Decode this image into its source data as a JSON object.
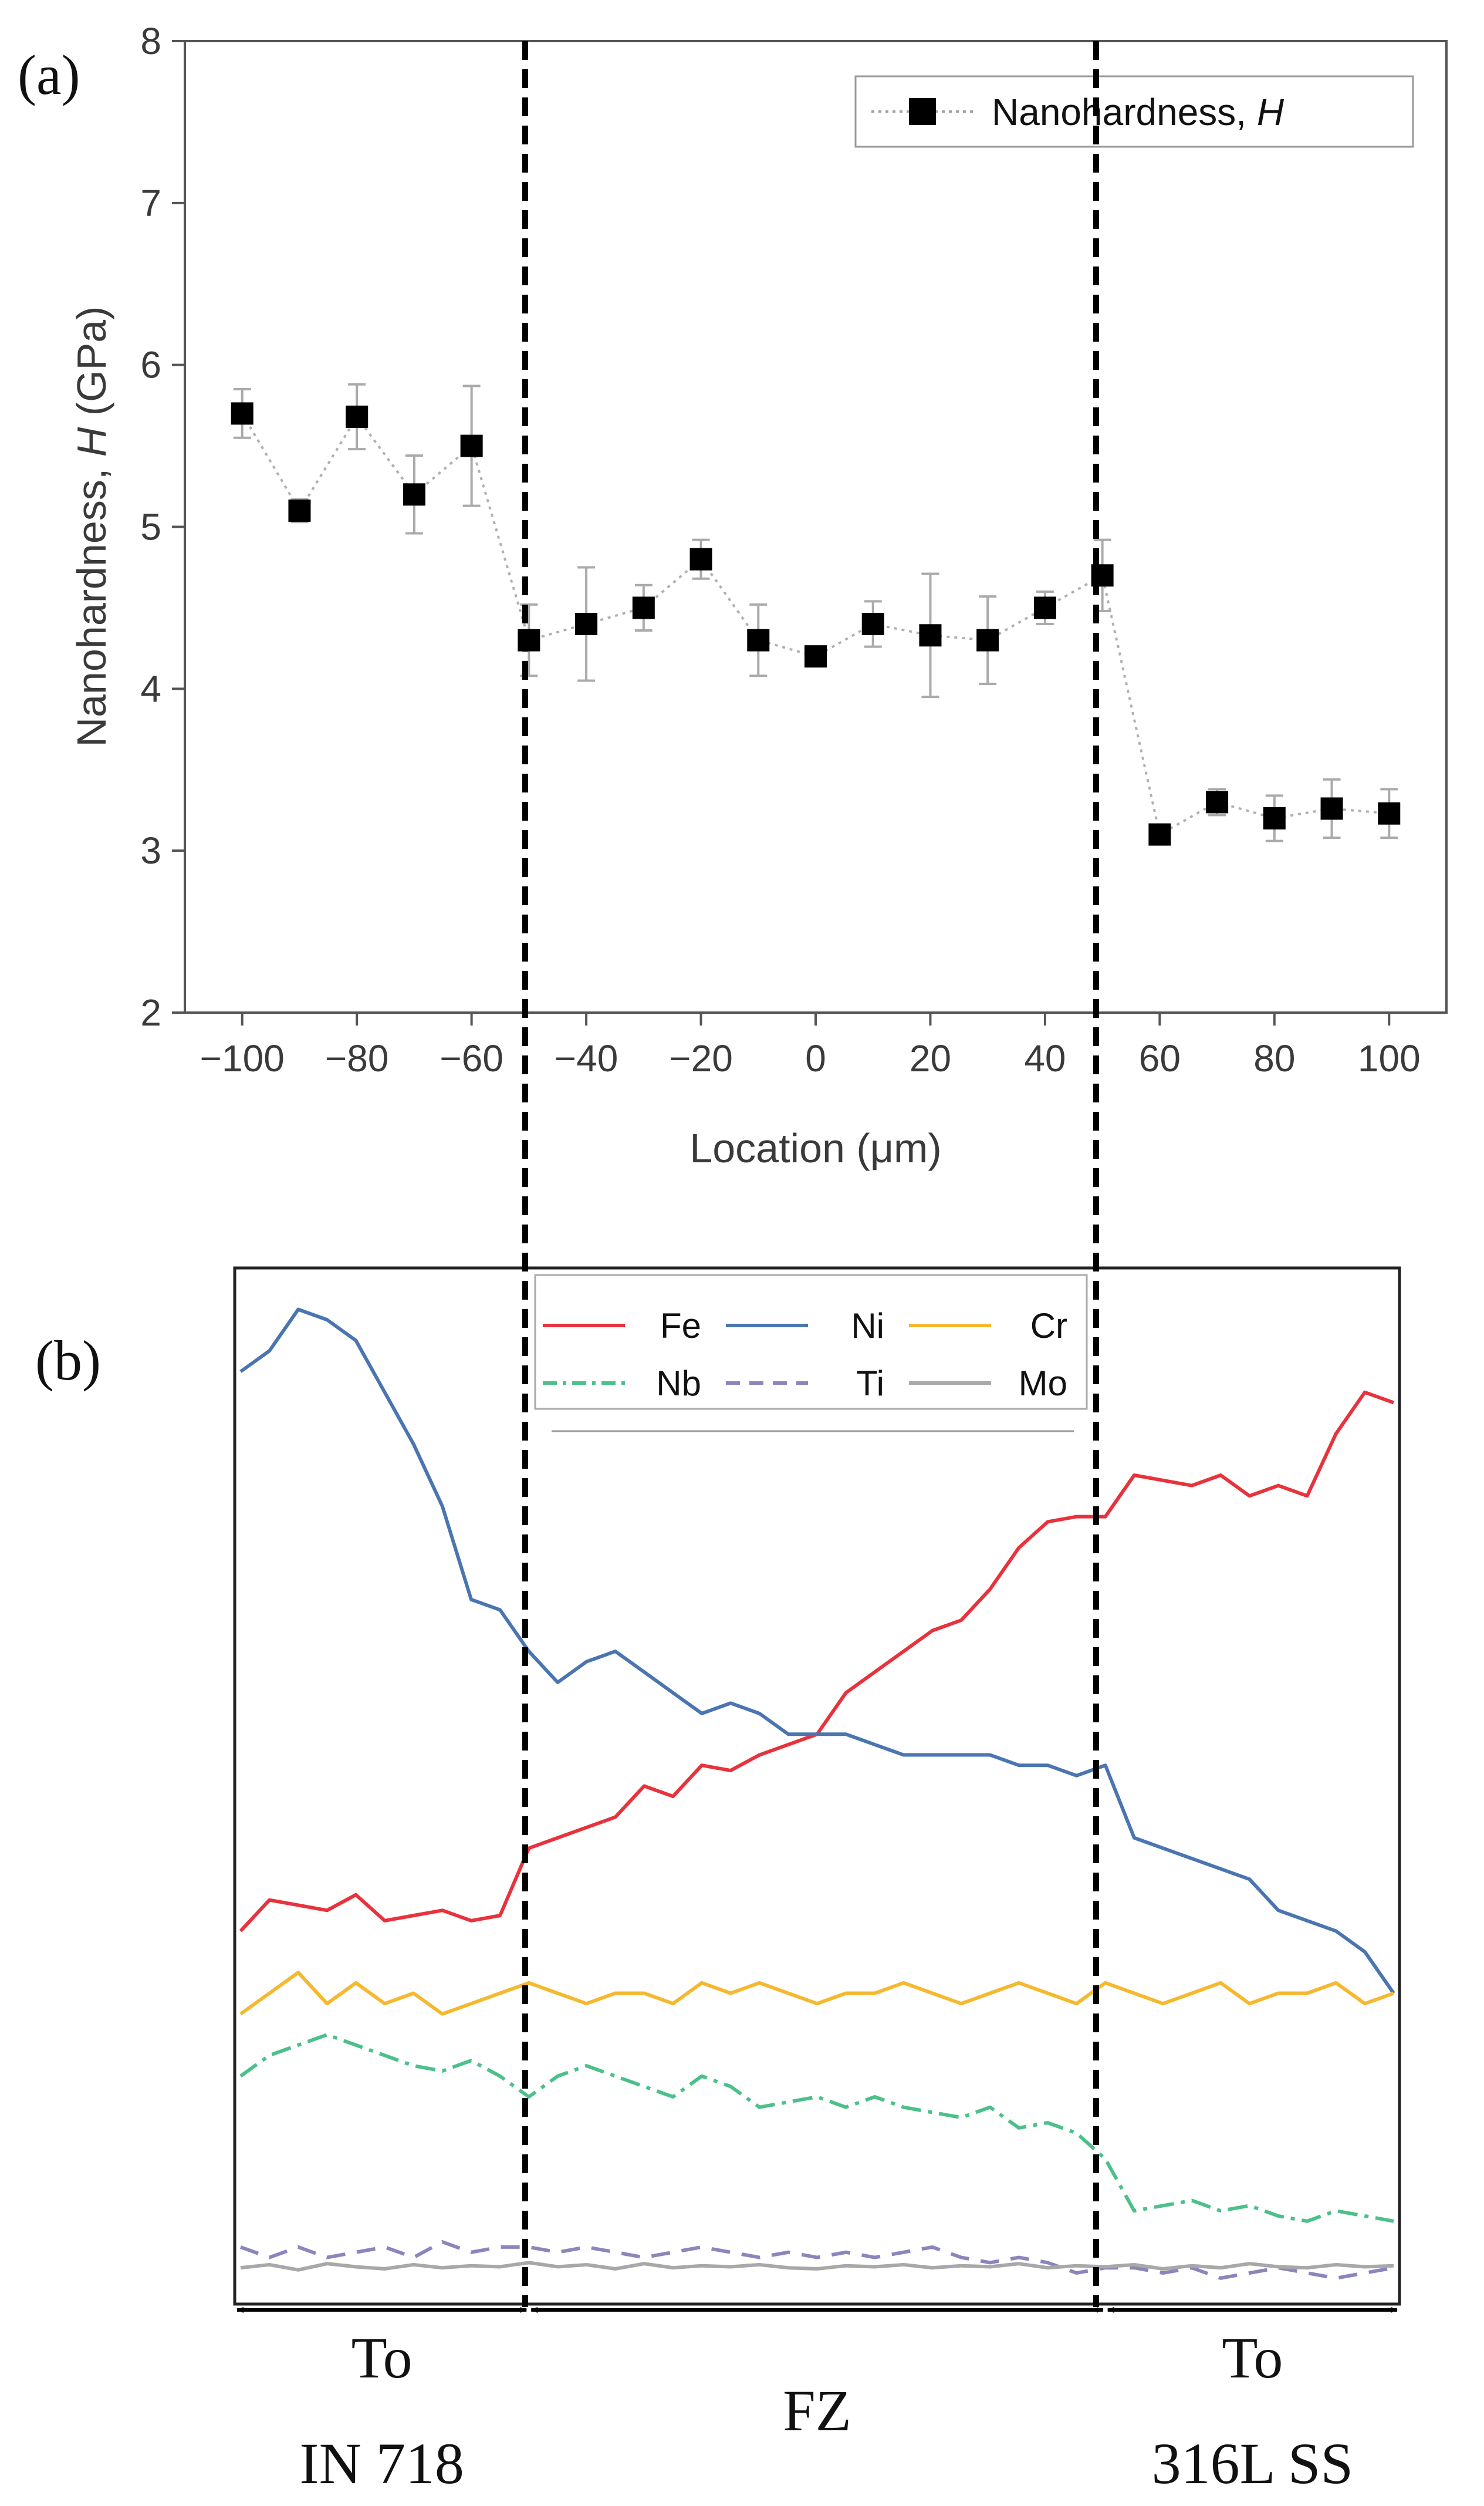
{
  "chart_data": [
    {
      "type": "scatter",
      "panel_label": "(a)",
      "title": "",
      "xlabel": "Location (μm)",
      "ylabel_prefix": "Nanohardness, ",
      "ylabel_symbol": "H",
      "ylabel_suffix": " (GPa)",
      "xlim": [
        -110,
        110
      ],
      "ylim": [
        2,
        8
      ],
      "xticks": [
        -100,
        -80,
        -60,
        -40,
        -20,
        0,
        20,
        40,
        60,
        80,
        100
      ],
      "xtick_labels": [
        "−100",
        "−80",
        "−60",
        "−40",
        "−20",
        "0",
        "20",
        "40",
        "60",
        "80",
        "100"
      ],
      "yticks": [
        2,
        3,
        4,
        5,
        6,
        7,
        8
      ],
      "ytick_labels": [
        "2",
        "3",
        "4",
        "5",
        "6",
        "7",
        "8"
      ],
      "legend_position": "top-right",
      "series": [
        {
          "name": "Nanohardness, ",
          "name_symbol": "H",
          "marker": "square",
          "color": "#000000",
          "line_color": "#b0b0b0",
          "x": [
            -100,
            -90,
            -80,
            -70,
            -60,
            -50,
            -40,
            -30,
            -20,
            -10,
            0,
            10,
            20,
            30,
            40,
            50,
            60,
            70,
            80,
            90,
            100
          ],
          "y": [
            5.7,
            5.1,
            5.68,
            5.2,
            5.5,
            4.3,
            4.4,
            4.5,
            4.8,
            4.3,
            4.2,
            4.4,
            4.33,
            4.3,
            4.5,
            4.7,
            3.1,
            3.3,
            3.2,
            3.26,
            3.23
          ],
          "error": [
            0.15,
            0.07,
            0.2,
            0.24,
            0.37,
            0.22,
            0.35,
            0.14,
            0.12,
            0.22,
            0.06,
            0.14,
            0.38,
            0.27,
            0.1,
            0.22,
            0.05,
            0.08,
            0.14,
            0.18,
            0.15
          ]
        }
      ],
      "boundaries_x": [
        -50,
        50
      ]
    },
    {
      "type": "line",
      "panel_label": "(b)",
      "title": "",
      "xlabel": "",
      "ylabel": "",
      "x_units": "μm",
      "xlim": [
        -100,
        100
      ],
      "ylim": [
        0,
        100
      ],
      "legend_position": "top-center",
      "series": [
        {
          "name": "Fe",
          "color": "#e8323c",
          "style": "solid",
          "x": [
            -100,
            -95,
            -90,
            -85,
            -80,
            -75,
            -70,
            -65,
            -60,
            -55,
            -50,
            -45,
            -40,
            -35,
            -30,
            -25,
            -20,
            -15,
            -10,
            -5,
            0,
            5,
            10,
            15,
            20,
            25,
            30,
            35,
            40,
            45,
            50,
            55,
            60,
            65,
            70,
            75,
            80,
            85,
            90,
            95,
            100
          ],
          "values": [
            36,
            39,
            38.5,
            38,
            39.5,
            37,
            37.5,
            38,
            37,
            37.5,
            44,
            45,
            46,
            47,
            50,
            49,
            52,
            51.5,
            53,
            54,
            55,
            59,
            61,
            63,
            65,
            66,
            69,
            73,
            75.5,
            76,
            76,
            80,
            79.5,
            79,
            80,
            78,
            79,
            78,
            84,
            88,
            87
          ]
        },
        {
          "name": "Ni",
          "color": "#4a75b0",
          "style": "solid",
          "x": [
            -100,
            -95,
            -90,
            -85,
            -80,
            -75,
            -70,
            -65,
            -60,
            -55,
            -50,
            -45,
            -40,
            -35,
            -30,
            -25,
            -20,
            -15,
            -10,
            -5,
            0,
            5,
            10,
            15,
            20,
            25,
            30,
            35,
            40,
            45,
            50,
            55,
            60,
            65,
            70,
            75,
            80,
            85,
            90,
            95,
            100
          ],
          "values": [
            90,
            92,
            96,
            95,
            93,
            88,
            83,
            77,
            68,
            67,
            63,
            60,
            62,
            63,
            61,
            59,
            57,
            58,
            57,
            55,
            55,
            55,
            54,
            53,
            53,
            53,
            53,
            52,
            52,
            51,
            52,
            45,
            44,
            43,
            42,
            41,
            38,
            37,
            36,
            34,
            30
          ]
        },
        {
          "name": "Cr",
          "color": "#f5b82e",
          "style": "solid",
          "x": [
            -100,
            -95,
            -90,
            -85,
            -80,
            -75,
            -70,
            -65,
            -60,
            -55,
            -50,
            -45,
            -40,
            -35,
            -30,
            -25,
            -20,
            -15,
            -10,
            -5,
            0,
            5,
            10,
            15,
            20,
            25,
            30,
            35,
            40,
            45,
            50,
            55,
            60,
            65,
            70,
            75,
            80,
            85,
            90,
            95,
            100
          ],
          "values": [
            28,
            30,
            32,
            29,
            31,
            29,
            30,
            28,
            29,
            30,
            31,
            30,
            29,
            30,
            30,
            29,
            31,
            30,
            31,
            30,
            29,
            30,
            30,
            31,
            30,
            29,
            30,
            31,
            30,
            29,
            31,
            30,
            29,
            30,
            31,
            29,
            30,
            30,
            31,
            29,
            30
          ]
        },
        {
          "name": "Nb",
          "color": "#4cc08a",
          "style": "dashdot",
          "x": [
            -100,
            -95,
            -90,
            -85,
            -80,
            -75,
            -70,
            -65,
            -60,
            -55,
            -50,
            -45,
            -40,
            -35,
            -30,
            -25,
            -20,
            -15,
            -10,
            -5,
            0,
            5,
            10,
            15,
            20,
            25,
            30,
            35,
            40,
            45,
            50,
            55,
            60,
            65,
            70,
            75,
            80,
            85,
            90,
            95,
            100
          ],
          "values": [
            22,
            24,
            25,
            26,
            25,
            24,
            23,
            22.5,
            23.5,
            22,
            20,
            22,
            23,
            22,
            21,
            20,
            22,
            21,
            19,
            19.5,
            20,
            19,
            20,
            19,
            18.5,
            18,
            19,
            17,
            17.5,
            16.5,
            14,
            9,
            9.5,
            10,
            9,
            9.5,
            8.5,
            8,
            9,
            8.5,
            8
          ]
        },
        {
          "name": "Ti",
          "color": "#8a86bd",
          "style": "dashed",
          "x": [
            -100,
            -95,
            -90,
            -85,
            -80,
            -75,
            -70,
            -65,
            -60,
            -55,
            -50,
            -45,
            -40,
            -35,
            -30,
            -25,
            -20,
            -15,
            -10,
            -5,
            0,
            5,
            10,
            15,
            20,
            25,
            30,
            35,
            40,
            45,
            50,
            55,
            60,
            65,
            70,
            75,
            80,
            85,
            90,
            95,
            100
          ],
          "values": [
            5.5,
            4.5,
            5.5,
            4.5,
            5,
            5.5,
            4.5,
            6,
            5,
            5.5,
            5.5,
            5,
            5.5,
            5,
            4.5,
            5,
            5.5,
            5,
            4.5,
            5,
            4.5,
            5,
            4.5,
            5,
            5.5,
            4.5,
            4,
            4.5,
            4,
            3,
            3.5,
            3.5,
            3,
            3.5,
            2.5,
            3,
            3.5,
            3,
            2.5,
            3,
            3.5
          ]
        },
        {
          "name": "Mo",
          "color": "#a8a8a8",
          "style": "solid",
          "x": [
            -100,
            -95,
            -90,
            -85,
            -80,
            -75,
            -70,
            -65,
            -60,
            -55,
            -50,
            -45,
            -40,
            -35,
            -30,
            -25,
            -20,
            -15,
            -10,
            -5,
            0,
            5,
            10,
            15,
            20,
            25,
            30,
            35,
            40,
            45,
            50,
            55,
            60,
            65,
            70,
            75,
            80,
            85,
            90,
            95,
            100
          ],
          "values": [
            3.5,
            3.8,
            3.3,
            3.9,
            3.6,
            3.4,
            3.8,
            3.5,
            3.7,
            3.6,
            4.0,
            3.6,
            3.8,
            3.4,
            3.9,
            3.5,
            3.7,
            3.6,
            3.8,
            3.5,
            3.4,
            3.7,
            3.6,
            3.8,
            3.5,
            3.7,
            3.6,
            3.9,
            3.5,
            3.7,
            3.6,
            3.8,
            3.4,
            3.7,
            3.5,
            3.9,
            3.6,
            3.5,
            3.8,
            3.6,
            3.7
          ]
        }
      ],
      "boundaries_x": [
        -50,
        50
      ],
      "regions": [
        {
          "line1": "To",
          "line2": "IN 718",
          "x_range": [
            -100,
            -50
          ]
        },
        {
          "line1": "FZ",
          "line2": "",
          "x_range": [
            -50,
            50
          ]
        },
        {
          "line1": "To",
          "line2": "316L SS",
          "x_range": [
            50,
            100
          ]
        }
      ]
    }
  ]
}
